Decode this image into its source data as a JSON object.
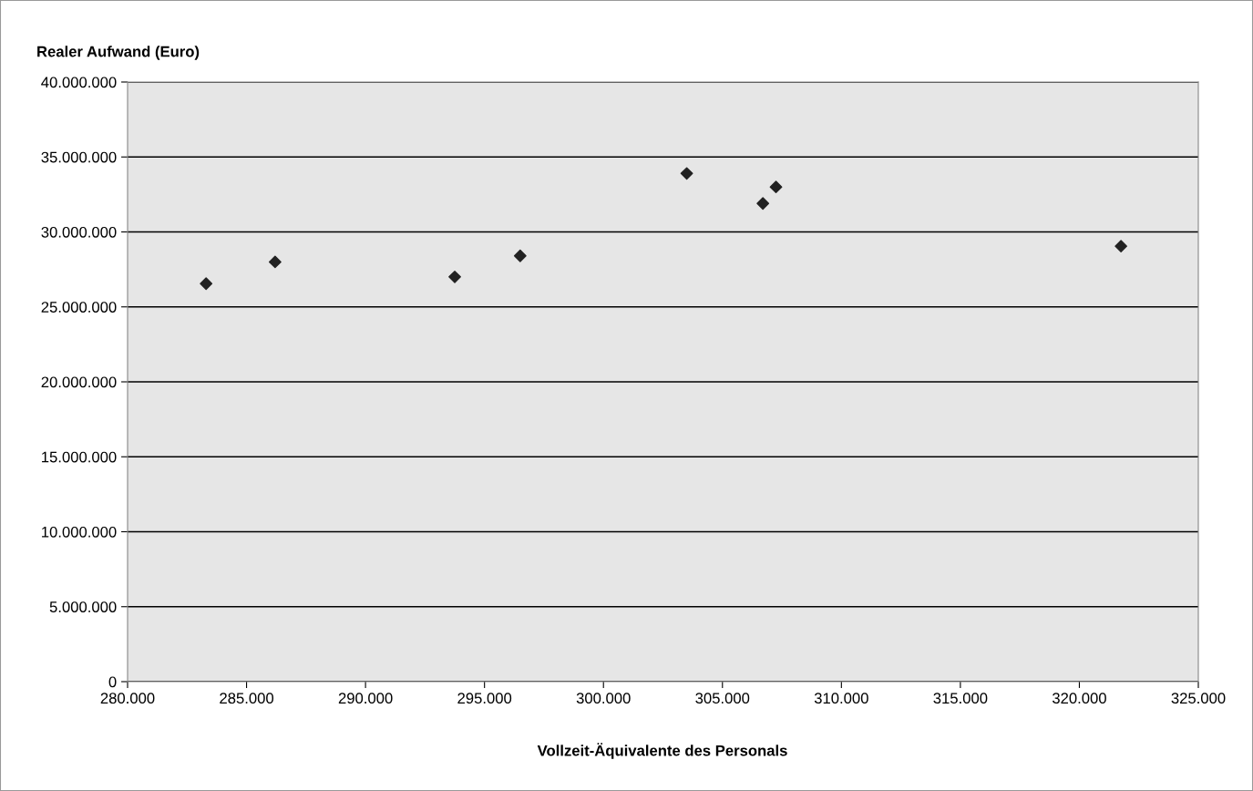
{
  "chart_data": {
    "type": "scatter",
    "ylabel": "Realer Aufwand (Euro)",
    "xlabel": "Vollzeit-Äquivalente des Personals",
    "x": [
      283300,
      286200,
      293750,
      296500,
      303500,
      306700,
      307250,
      321750
    ],
    "values": [
      26550000,
      28000000,
      27000000,
      28400000,
      33900000,
      31900000,
      33000000,
      29050000
    ],
    "color": "#222222",
    "marker": "diamond",
    "grid": "y",
    "xlim": [
      280000,
      325000
    ],
    "xticks": [
      {
        "value": 280000,
        "label": "280.000"
      },
      {
        "value": 285000,
        "label": "285.000"
      },
      {
        "value": 290000,
        "label": "290.000"
      },
      {
        "value": 295000,
        "label": "295.000"
      },
      {
        "value": 300000,
        "label": "300.000"
      },
      {
        "value": 305000,
        "label": "305.000"
      },
      {
        "value": 310000,
        "label": "310.000"
      },
      {
        "value": 315000,
        "label": "315.000"
      },
      {
        "value": 320000,
        "label": "320.000"
      },
      {
        "value": 325000,
        "label": "325.000"
      }
    ],
    "ylim": [
      0,
      40000000
    ],
    "yticks": [
      0,
      {
        "value": 5000000,
        "label": "5.000.000"
      },
      {
        "value": 10000000,
        "label": "10.000.000"
      },
      {
        "value": 15000000,
        "label": "15.000.000"
      },
      {
        "value": 20000000,
        "label": "20.000.000"
      },
      {
        "value": 25000000,
        "label": "25.000.000"
      },
      {
        "value": 30000000,
        "label": "30.000.000"
      },
      {
        "value": 35000000,
        "label": "35.000.000"
      },
      {
        "value": 40000000,
        "label": "40.000.000"
      }
    ]
  }
}
